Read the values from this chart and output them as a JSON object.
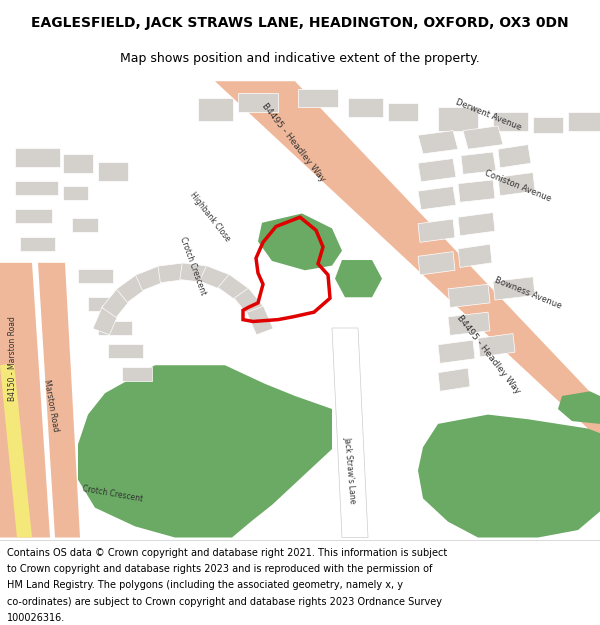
{
  "title": "EAGLESFIELD, JACK STRAWS LANE, HEADINGTON, OXFORD, OX3 0DN",
  "subtitle": "Map shows position and indicative extent of the property.",
  "footer_lines": [
    "Contains OS data © Crown copyright and database right 2021. This information is subject",
    "to Crown copyright and database rights 2023 and is reproduced with the permission of",
    "HM Land Registry. The polygons (including the associated geometry, namely x, y",
    "co-ordinates) are subject to Crown copyright and database rights 2023 Ordnance Survey",
    "100026316."
  ],
  "map_bg": "#f0ede8",
  "road_salmon": "#f0b89a",
  "road_yellow": "#f5e87a",
  "road_white": "#ffffff",
  "building_gray": "#d4d0cc",
  "green_area": "#6aaa64",
  "red_boundary": "#e00000"
}
